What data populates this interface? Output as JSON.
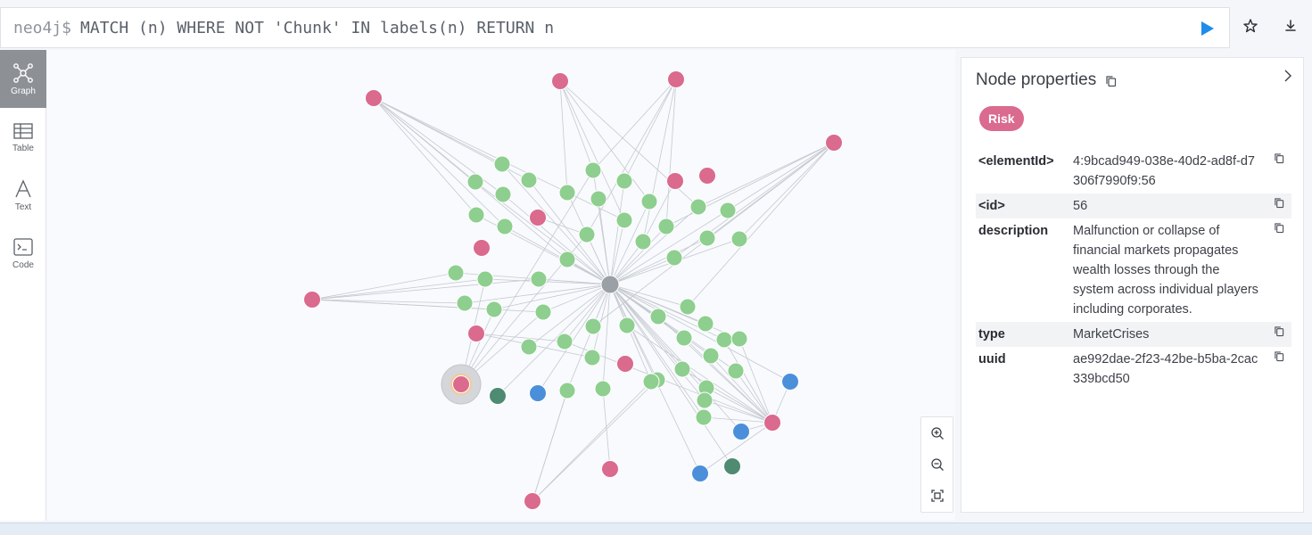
{
  "query": {
    "prompt": "neo4j$",
    "text": "MATCH (n) WHERE NOT 'Chunk' IN labels(n) RETURN n"
  },
  "toolbar": {
    "run_icon": "play-icon",
    "favorite_icon": "star-icon",
    "download_icon": "download-icon",
    "accent": "#1f8bea"
  },
  "sidebar": {
    "items": [
      {
        "label": "Graph",
        "icon": "graph-icon",
        "active": true
      },
      {
        "label": "Table",
        "icon": "table-icon",
        "active": false
      },
      {
        "label": "Text",
        "icon": "text-icon",
        "active": false
      },
      {
        "label": "Code",
        "icon": "code-icon",
        "active": false
      }
    ]
  },
  "graph": {
    "node_colors": {
      "risk": "#da6a8e",
      "entity": "#8ecf8f",
      "blue": "#4b8fda",
      "dark": "#4f8a72",
      "hub": "#9aa0a6"
    }
  },
  "zoom": {
    "in_icon": "zoom-in-icon",
    "out_icon": "zoom-out-icon",
    "fit_icon": "fit-screen-icon"
  },
  "properties": {
    "title": "Node properties",
    "label_badge": "Risk",
    "rows": [
      {
        "key": "<elementId>",
        "value": "4:9bcad949-038e-40d2-ad8f-d7306f7990f9:56"
      },
      {
        "key": "<id>",
        "value": "56"
      },
      {
        "key": "description",
        "value": "Malfunction or collapse of financial markets propagates wealth losses through the system across individual players including corporates."
      },
      {
        "key": "type",
        "value": "MarketCrises"
      },
      {
        "key": "uuid",
        "value": "ae992dae-2f23-42be-b5ba-2cac339bcd50"
      }
    ]
  }
}
